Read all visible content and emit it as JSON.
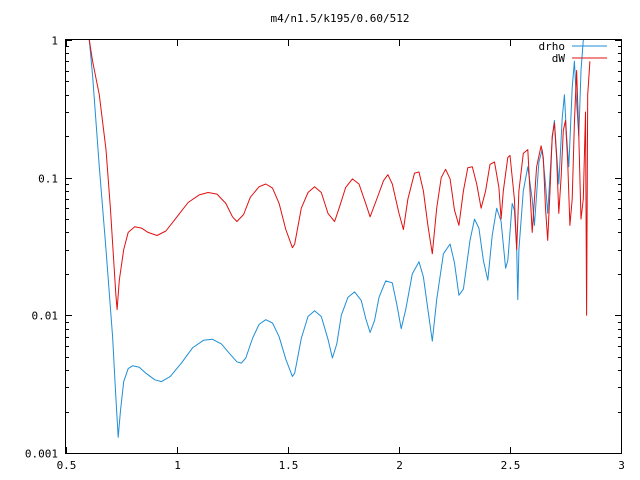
{
  "chart_data": {
    "type": "line",
    "title": "m4/n1.5/k195/0.60/512",
    "xlabel": "",
    "ylabel": "",
    "xlim": [
      0.5,
      3
    ],
    "ylim": [
      0.001,
      1
    ],
    "yscale": "log",
    "grid": false,
    "legend_position": "top-right",
    "x_ticks": [
      {
        "value": 0.5,
        "label": "0.5"
      },
      {
        "value": 1,
        "label": "1"
      },
      {
        "value": 1.5,
        "label": "1.5"
      },
      {
        "value": 2,
        "label": "2"
      },
      {
        "value": 2.5,
        "label": "2.5"
      },
      {
        "value": 3,
        "label": "3"
      }
    ],
    "y_ticks": [
      {
        "value": 0.001,
        "label": "0.001"
      },
      {
        "value": 0.01,
        "label": "0.01"
      },
      {
        "value": 0.1,
        "label": "0.1"
      },
      {
        "value": 1,
        "label": "1"
      }
    ],
    "series": [
      {
        "name": "drho",
        "color": "#1f8fd6",
        "points": [
          [
            0.605,
            1.0
          ],
          [
            0.62,
            0.55
          ],
          [
            0.65,
            0.12
          ],
          [
            0.68,
            0.03
          ],
          [
            0.71,
            0.007
          ],
          [
            0.725,
            0.0025
          ],
          [
            0.735,
            0.0013
          ],
          [
            0.745,
            0.002
          ],
          [
            0.76,
            0.0033
          ],
          [
            0.78,
            0.0041
          ],
          [
            0.8,
            0.0043
          ],
          [
            0.83,
            0.0042
          ],
          [
            0.86,
            0.0038
          ],
          [
            0.9,
            0.0034
          ],
          [
            0.93,
            0.0033
          ],
          [
            0.97,
            0.0036
          ],
          [
            1.02,
            0.0045
          ],
          [
            1.07,
            0.0058
          ],
          [
            1.12,
            0.0066
          ],
          [
            1.16,
            0.0067
          ],
          [
            1.2,
            0.0062
          ],
          [
            1.24,
            0.0052
          ],
          [
            1.27,
            0.0046
          ],
          [
            1.29,
            0.0045
          ],
          [
            1.31,
            0.0049
          ],
          [
            1.34,
            0.0068
          ],
          [
            1.37,
            0.0086
          ],
          [
            1.4,
            0.0093
          ],
          [
            1.43,
            0.0088
          ],
          [
            1.46,
            0.007
          ],
          [
            1.49,
            0.0048
          ],
          [
            1.52,
            0.0036
          ],
          [
            1.53,
            0.0038
          ],
          [
            1.56,
            0.0068
          ],
          [
            1.59,
            0.0098
          ],
          [
            1.62,
            0.0108
          ],
          [
            1.65,
            0.0098
          ],
          [
            1.68,
            0.0067
          ],
          [
            1.7,
            0.0049
          ],
          [
            1.72,
            0.0062
          ],
          [
            1.74,
            0.01
          ],
          [
            1.77,
            0.0135
          ],
          [
            1.8,
            0.0148
          ],
          [
            1.83,
            0.0128
          ],
          [
            1.85,
            0.0095
          ],
          [
            1.87,
            0.0075
          ],
          [
            1.89,
            0.0092
          ],
          [
            1.91,
            0.0135
          ],
          [
            1.94,
            0.0178
          ],
          [
            1.97,
            0.0172
          ],
          [
            1.99,
            0.012
          ],
          [
            2.01,
            0.008
          ],
          [
            2.03,
            0.011
          ],
          [
            2.06,
            0.02
          ],
          [
            2.09,
            0.0245
          ],
          [
            2.11,
            0.019
          ],
          [
            2.13,
            0.011
          ],
          [
            2.15,
            0.0065
          ],
          [
            2.17,
            0.013
          ],
          [
            2.2,
            0.028
          ],
          [
            2.23,
            0.033
          ],
          [
            2.25,
            0.024
          ],
          [
            2.27,
            0.014
          ],
          [
            2.29,
            0.0155
          ],
          [
            2.32,
            0.035
          ],
          [
            2.34,
            0.05
          ],
          [
            2.36,
            0.043
          ],
          [
            2.38,
            0.025
          ],
          [
            2.4,
            0.018
          ],
          [
            2.42,
            0.038
          ],
          [
            2.44,
            0.06
          ],
          [
            2.46,
            0.048
          ],
          [
            2.48,
            0.022
          ],
          [
            2.49,
            0.025
          ],
          [
            2.51,
            0.065
          ],
          [
            2.52,
            0.058
          ],
          [
            2.53,
            0.03
          ],
          [
            2.535,
            0.013
          ],
          [
            2.54,
            0.03
          ],
          [
            2.56,
            0.08
          ],
          [
            2.58,
            0.12
          ],
          [
            2.6,
            0.07
          ],
          [
            2.61,
            0.045
          ],
          [
            2.63,
            0.13
          ],
          [
            2.645,
            0.16
          ],
          [
            2.66,
            0.09
          ],
          [
            2.67,
            0.055
          ],
          [
            2.69,
            0.19
          ],
          [
            2.7,
            0.26
          ],
          [
            2.71,
            0.15
          ],
          [
            2.72,
            0.09
          ],
          [
            2.735,
            0.27
          ],
          [
            2.745,
            0.4
          ],
          [
            2.755,
            0.2
          ],
          [
            2.765,
            0.12
          ],
          [
            2.78,
            0.45
          ],
          [
            2.79,
            0.7
          ],
          [
            2.8,
            0.35
          ],
          [
            2.81,
            0.2
          ],
          [
            2.82,
            0.6
          ],
          [
            2.83,
            1.0
          ]
        ]
      },
      {
        "name": "dW",
        "color": "#e01010",
        "points": [
          [
            0.605,
            1.0
          ],
          [
            0.62,
            0.7
          ],
          [
            0.65,
            0.4
          ],
          [
            0.68,
            0.16
          ],
          [
            0.7,
            0.06
          ],
          [
            0.715,
            0.025
          ],
          [
            0.725,
            0.014
          ],
          [
            0.73,
            0.011
          ],
          [
            0.74,
            0.018
          ],
          [
            0.76,
            0.03
          ],
          [
            0.78,
            0.04
          ],
          [
            0.81,
            0.044
          ],
          [
            0.84,
            0.043
          ],
          [
            0.87,
            0.04
          ],
          [
            0.91,
            0.038
          ],
          [
            0.95,
            0.041
          ],
          [
            1.0,
            0.052
          ],
          [
            1.05,
            0.066
          ],
          [
            1.1,
            0.075
          ],
          [
            1.14,
            0.078
          ],
          [
            1.18,
            0.076
          ],
          [
            1.22,
            0.065
          ],
          [
            1.25,
            0.052
          ],
          [
            1.27,
            0.048
          ],
          [
            1.3,
            0.054
          ],
          [
            1.33,
            0.072
          ],
          [
            1.37,
            0.086
          ],
          [
            1.4,
            0.09
          ],
          [
            1.43,
            0.084
          ],
          [
            1.46,
            0.065
          ],
          [
            1.49,
            0.042
          ],
          [
            1.52,
            0.031
          ],
          [
            1.53,
            0.033
          ],
          [
            1.56,
            0.06
          ],
          [
            1.59,
            0.078
          ],
          [
            1.62,
            0.086
          ],
          [
            1.65,
            0.078
          ],
          [
            1.68,
            0.055
          ],
          [
            1.71,
            0.048
          ],
          [
            1.73,
            0.06
          ],
          [
            1.76,
            0.085
          ],
          [
            1.79,
            0.098
          ],
          [
            1.82,
            0.09
          ],
          [
            1.85,
            0.065
          ],
          [
            1.87,
            0.052
          ],
          [
            1.9,
            0.07
          ],
          [
            1.93,
            0.095
          ],
          [
            1.95,
            0.105
          ],
          [
            1.97,
            0.09
          ],
          [
            2.0,
            0.055
          ],
          [
            2.02,
            0.042
          ],
          [
            2.04,
            0.07
          ],
          [
            2.07,
            0.108
          ],
          [
            2.09,
            0.11
          ],
          [
            2.11,
            0.08
          ],
          [
            2.13,
            0.045
          ],
          [
            2.15,
            0.028
          ],
          [
            2.17,
            0.06
          ],
          [
            2.19,
            0.1
          ],
          [
            2.21,
            0.115
          ],
          [
            2.23,
            0.098
          ],
          [
            2.25,
            0.058
          ],
          [
            2.27,
            0.045
          ],
          [
            2.29,
            0.08
          ],
          [
            2.31,
            0.118
          ],
          [
            2.33,
            0.12
          ],
          [
            2.35,
            0.09
          ],
          [
            2.37,
            0.06
          ],
          [
            2.39,
            0.08
          ],
          [
            2.41,
            0.125
          ],
          [
            2.43,
            0.13
          ],
          [
            2.45,
            0.085
          ],
          [
            2.46,
            0.05
          ],
          [
            2.47,
            0.08
          ],
          [
            2.49,
            0.14
          ],
          [
            2.5,
            0.145
          ],
          [
            2.52,
            0.07
          ],
          [
            2.53,
            0.03
          ],
          [
            2.54,
            0.08
          ],
          [
            2.56,
            0.15
          ],
          [
            2.58,
            0.16
          ],
          [
            2.59,
            0.08
          ],
          [
            2.6,
            0.04
          ],
          [
            2.62,
            0.12
          ],
          [
            2.64,
            0.17
          ],
          [
            2.65,
            0.14
          ],
          [
            2.66,
            0.06
          ],
          [
            2.67,
            0.035
          ],
          [
            2.68,
            0.08
          ],
          [
            2.69,
            0.2
          ],
          [
            2.7,
            0.25
          ],
          [
            2.71,
            0.14
          ],
          [
            2.72,
            0.055
          ],
          [
            2.73,
            0.1
          ],
          [
            2.74,
            0.22
          ],
          [
            2.75,
            0.26
          ],
          [
            2.76,
            0.13
          ],
          [
            2.77,
            0.045
          ],
          [
            2.78,
            0.07
          ],
          [
            2.79,
            0.25
          ],
          [
            2.8,
            0.6
          ],
          [
            2.81,
            0.2
          ],
          [
            2.82,
            0.05
          ],
          [
            2.83,
            0.07
          ],
          [
            2.84,
            0.3
          ],
          [
            2.845,
            0.01
          ],
          [
            2.85,
            0.4
          ],
          [
            2.86,
            0.7
          ]
        ]
      }
    ]
  }
}
